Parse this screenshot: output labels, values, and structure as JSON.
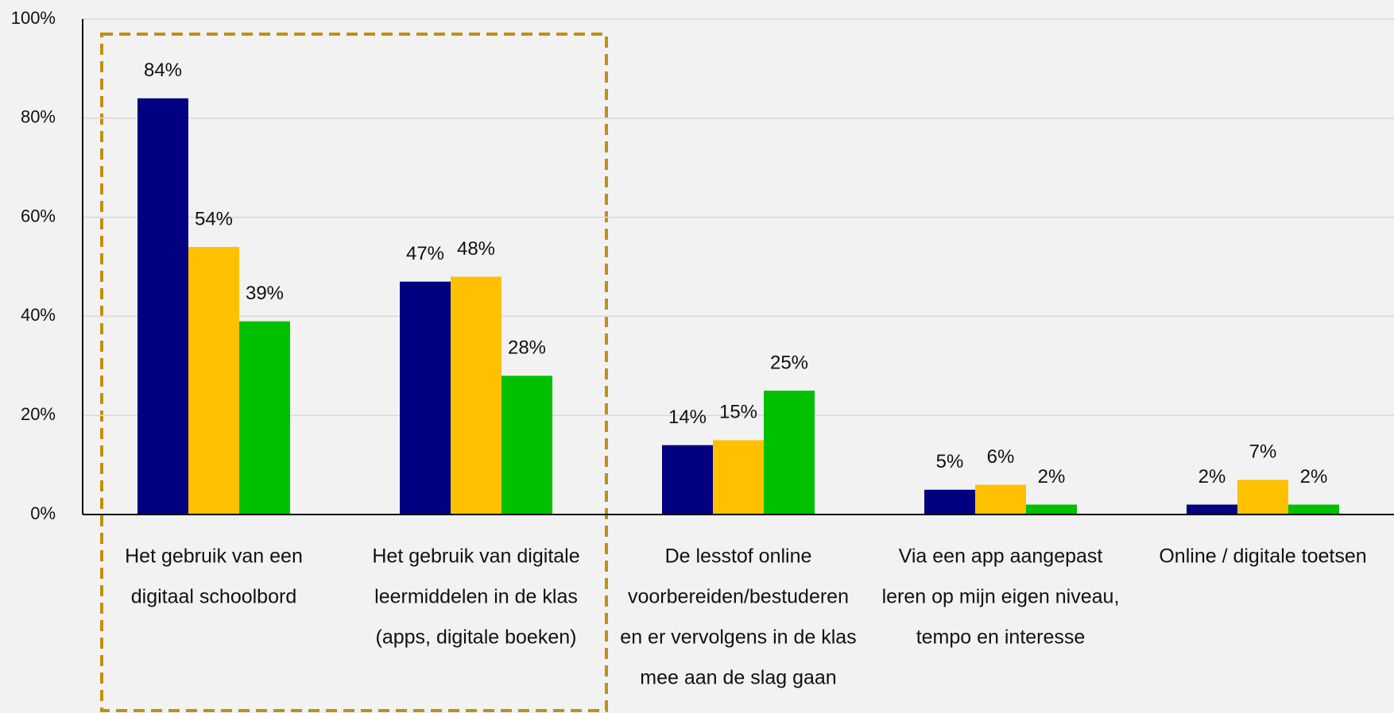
{
  "chart_data": {
    "type": "bar",
    "categories": [
      [
        "Het gebruik van een",
        "digitaal schoolbord"
      ],
      [
        "Het gebruik van digitale",
        "leermiddelen in de klas",
        "(apps, digitale boeken)"
      ],
      [
        "De lesstof online",
        "voorbereiden/bestuderen",
        "en er vervolgens in de klas",
        "mee aan de slag gaan"
      ],
      [
        "Via een app aangepast",
        "leren op mijn eigen niveau,",
        "tempo en interesse"
      ],
      [
        "Online / digitale toetsen"
      ]
    ],
    "series": [
      {
        "color": "#000080",
        "values": [
          84,
          47,
          14,
          5,
          2
        ],
        "value_labels": [
          "84%",
          "47%",
          "14%",
          "5%",
          "2%"
        ]
      },
      {
        "color": "#ffc000",
        "values": [
          54,
          48,
          15,
          6,
          7
        ],
        "value_labels": [
          "54%",
          "48%",
          "15%",
          "6%",
          "7%"
        ]
      },
      {
        "color": "#00c000",
        "values": [
          39,
          28,
          25,
          2,
          2
        ],
        "value_labels": [
          "39%",
          "28%",
          "25%",
          "2%",
          "2%"
        ]
      }
    ],
    "ylim": [
      0,
      100
    ],
    "yticks": [
      {
        "value": 0,
        "label": "0%"
      },
      {
        "value": 20,
        "label": "20%"
      },
      {
        "value": 40,
        "label": "40%"
      },
      {
        "value": 60,
        "label": "60%"
      },
      {
        "value": 80,
        "label": "80%"
      },
      {
        "value": 100,
        "label": "100%"
      }
    ],
    "grid": true
  }
}
